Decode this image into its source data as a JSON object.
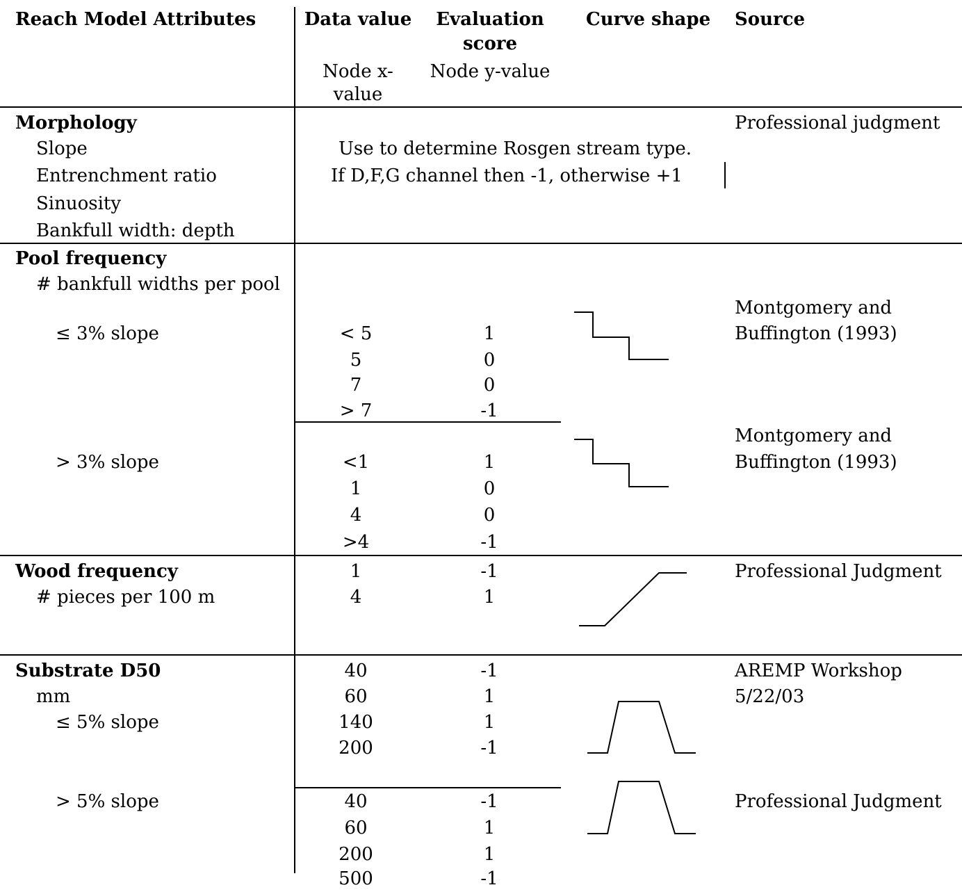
{
  "header": {
    "attributes": "Reach Model Attributes",
    "data_value": "Data value",
    "evaluation": "Evaluation",
    "score": "score",
    "curve_shape": "Curve shape",
    "source": "Source",
    "node_x1": "Node x-",
    "node_x2": "value",
    "node_y": "Node y-value"
  },
  "morphology": {
    "title": "Morphology",
    "items": [
      "Slope",
      "Entrenchment ratio",
      "Sinuosity",
      "Bankfull width: depth"
    ],
    "note1": "Use to determine Rosgen stream type.",
    "note2": "If D,F,G channel then -1, otherwise +1",
    "source": "Professional judgment"
  },
  "pool": {
    "title": "Pool frequency",
    "sub": "# bankfull widths per pool",
    "slope_low": "≤ 3% slope",
    "slope_high": "> 3% slope",
    "low_x": [
      "< 5",
      "5",
      "7",
      "> 7"
    ],
    "low_y": [
      "1",
      "0",
      "0",
      "-1"
    ],
    "high_x": [
      "<1",
      "1",
      "4",
      ">4"
    ],
    "high_y": [
      "1",
      "0",
      "0",
      "-1"
    ],
    "source_a1": "Montgomery and",
    "source_a2": "Buffington (1993)",
    "source_b1": "Montgomery and",
    "source_b2": "Buffington (1993)"
  },
  "wood": {
    "title": "Wood frequency",
    "sub": "# pieces per 100 m",
    "x": [
      "1",
      "4"
    ],
    "y": [
      "-1",
      "1"
    ],
    "source": "Professional Judgment"
  },
  "substrate": {
    "title": "Substrate D50",
    "unit": "mm",
    "slope_low": "≤ 5% slope",
    "slope_high": "> 5% slope",
    "low_x": [
      "40",
      "60",
      "140",
      "200"
    ],
    "low_y": [
      "-1",
      "1",
      "1",
      "-1"
    ],
    "high_x": [
      "40",
      "60",
      "200",
      "500"
    ],
    "high_y": [
      "-1",
      "1",
      "1",
      "-1"
    ],
    "source_a1": "AREMP Workshop",
    "source_a2": "5/22/03",
    "source_b": "Professional Judgment"
  }
}
